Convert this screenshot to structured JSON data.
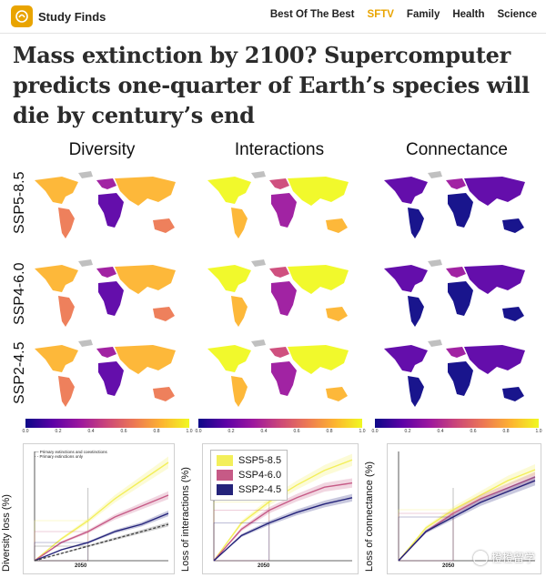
{
  "header": {
    "site_name": "Study Finds",
    "nav": [
      "Best Of The Best",
      "SFTV",
      "Family",
      "Health",
      "Science"
    ],
    "accent_color": "#e9a400"
  },
  "article": {
    "headline": "Mass extinction by 2100? Supercomputer predicts one-quarter of Earth’s species will die by century’s end"
  },
  "figure": {
    "columns": [
      "Diversity",
      "Interactions",
      "Connectance"
    ],
    "rows": [
      "SSP5-8.5",
      "SSP4-6.0",
      "SSP2-4.5"
    ],
    "colorbar_ticks": [
      "0.0",
      "0.2",
      "0.4",
      "0.6",
      "0.8",
      "1.0"
    ],
    "colorbar_range": [
      0.0,
      1.0
    ],
    "colormap": [
      "#0d0887",
      "#5c01a6",
      "#9c179e",
      "#cc4778",
      "#ed7953",
      "#fdb42f",
      "#f0f921"
    ]
  },
  "chart_data": [
    {
      "type": "line",
      "ylabel": "Diversity loss (%)",
      "x_marker": "2050",
      "legend": [
        "Primary extinctions and coextinctions",
        "Primary extinctions only"
      ],
      "series": [
        {
          "values": [
            0,
            6,
            11,
            17,
            22,
            27
          ]
        },
        {
          "values": [
            0,
            5,
            8,
            12,
            15,
            18
          ]
        },
        {
          "values": [
            0,
            3,
            5,
            8,
            10,
            13
          ]
        },
        {
          "values": [
            0,
            2,
            4,
            6,
            8,
            10
          ]
        }
      ]
    },
    {
      "type": "line",
      "ylabel": "Loss of interactions (%)",
      "x_marker": "2050",
      "legend": [
        "SSP5-8.5",
        "SSP4-6.0",
        "SSP2-4.5"
      ],
      "series_colors": [
        "#f3ef5a",
        "#c65a86",
        "#24237a"
      ],
      "series": [
        {
          "name": "SSP5-8.5",
          "values": [
            0,
            18,
            28,
            36,
            43,
            48
          ]
        },
        {
          "name": "SSP4-6.0",
          "values": [
            0,
            15,
            24,
            30,
            35,
            37
          ]
        },
        {
          "name": "SSP2-4.5",
          "values": [
            0,
            12,
            18,
            23,
            27,
            30
          ]
        }
      ]
    },
    {
      "type": "line",
      "ylabel": "Loss of connectance (%)",
      "x_marker": "2050",
      "series": [
        {
          "values": [
            0,
            9,
            14,
            18,
            22,
            25
          ]
        },
        {
          "values": [
            0,
            8,
            13,
            17,
            20,
            23
          ]
        },
        {
          "values": [
            0,
            8,
            12,
            16,
            19,
            22
          ]
        }
      ]
    }
  ],
  "watermark": {
    "text": "橙橙留学"
  }
}
